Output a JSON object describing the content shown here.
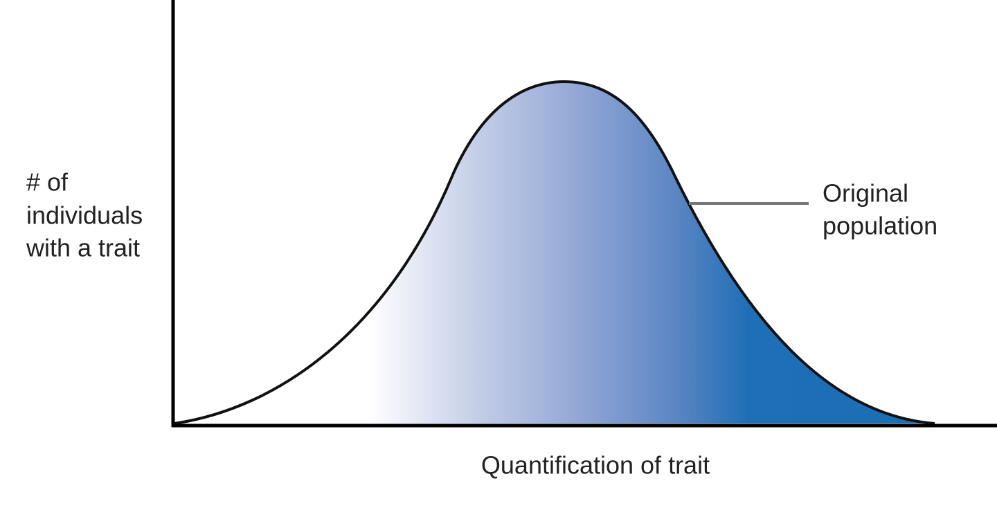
{
  "y_axis_label": {
    "lines": [
      "# of",
      "individuals",
      "with a trait"
    ]
  },
  "x_axis_label": "Quantification of trait",
  "annotation": {
    "lines": [
      "Original",
      "population"
    ]
  }
}
